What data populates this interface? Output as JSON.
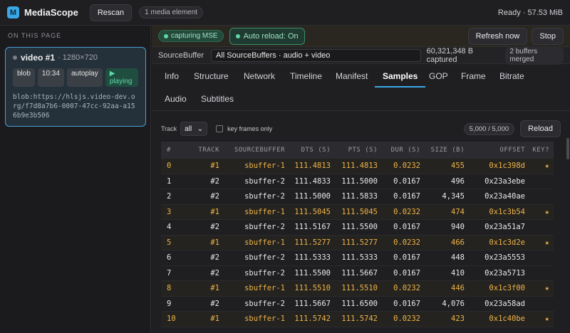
{
  "app": {
    "logo_letter": "M",
    "name": "MediaScope",
    "rescan_label": "Rescan",
    "media_count": "1 media element",
    "status": "Ready · 57.53 MiB"
  },
  "sidebar": {
    "heading": "ON THIS PAGE",
    "card": {
      "title": "video #1",
      "dims": "· 1280×720",
      "chips": [
        "blob",
        "10:34",
        "autoplay",
        "playing"
      ],
      "url": "blob:https://hlsjs.video-dev.org/f7d8a7b6-0007-47cc-92aa-a156b9e3b506"
    }
  },
  "status_bar": {
    "capture_badge": "capturing MSE",
    "auto_reload": "Auto reload: On",
    "refresh": "Refresh now",
    "stop": "Stop"
  },
  "sourcebuffer": {
    "label": "SourceBuffer",
    "selected": "All SourceBuffers · audio + video",
    "captured": "60,321,348 B captured",
    "merged": "2 buffers merged"
  },
  "tabs": [
    "Info",
    "Structure",
    "Network",
    "Timeline",
    "Manifest",
    "Samples",
    "GOP",
    "Frame",
    "Bitrate",
    "Audio",
    "Subtitles"
  ],
  "active_tab": "Samples",
  "toolbar": {
    "track_label": "Track",
    "track_value": "all",
    "keyframes_label": "key frames only",
    "count": "5,000 / 5,000",
    "reload": "Reload"
  },
  "table": {
    "columns": [
      "#",
      "TRACK",
      "SOURCEBUFFER",
      "DTS (S)",
      "PTS (S)",
      "DUR (S)",
      "SIZE (B)",
      "OFFSET",
      "KEY?"
    ],
    "rows": [
      {
        "i": "0",
        "track": "#1",
        "sb": "sbuffer-1",
        "dts": "111.4813",
        "pts": "111.4813",
        "dur": "0.0232",
        "size": "455",
        "offset": "0x1c398d",
        "key": "★"
      },
      {
        "i": "1",
        "track": "#2",
        "sb": "sbuffer-2",
        "dts": "111.4833",
        "pts": "111.5000",
        "dur": "0.0167",
        "size": "496",
        "offset": "0x23a3ebe",
        "key": ""
      },
      {
        "i": "2",
        "track": "#2",
        "sb": "sbuffer-2",
        "dts": "111.5000",
        "pts": "111.5833",
        "dur": "0.0167",
        "size": "4,345",
        "offset": "0x23a40ae",
        "key": ""
      },
      {
        "i": "3",
        "track": "#1",
        "sb": "sbuffer-1",
        "dts": "111.5045",
        "pts": "111.5045",
        "dur": "0.0232",
        "size": "474",
        "offset": "0x1c3b54",
        "key": "★"
      },
      {
        "i": "4",
        "track": "#2",
        "sb": "sbuffer-2",
        "dts": "111.5167",
        "pts": "111.5500",
        "dur": "0.0167",
        "size": "940",
        "offset": "0x23a51a7",
        "key": ""
      },
      {
        "i": "5",
        "track": "#1",
        "sb": "sbuffer-1",
        "dts": "111.5277",
        "pts": "111.5277",
        "dur": "0.0232",
        "size": "466",
        "offset": "0x1c3d2e",
        "key": "★"
      },
      {
        "i": "6",
        "track": "#2",
        "sb": "sbuffer-2",
        "dts": "111.5333",
        "pts": "111.5333",
        "dur": "0.0167",
        "size": "448",
        "offset": "0x23a5553",
        "key": ""
      },
      {
        "i": "7",
        "track": "#2",
        "sb": "sbuffer-2",
        "dts": "111.5500",
        "pts": "111.5667",
        "dur": "0.0167",
        "size": "410",
        "offset": "0x23a5713",
        "key": ""
      },
      {
        "i": "8",
        "track": "#1",
        "sb": "sbuffer-1",
        "dts": "111.5510",
        "pts": "111.5510",
        "dur": "0.0232",
        "size": "446",
        "offset": "0x1c3f00",
        "key": "★"
      },
      {
        "i": "9",
        "track": "#2",
        "sb": "sbuffer-2",
        "dts": "111.5667",
        "pts": "111.6500",
        "dur": "0.0167",
        "size": "4,076",
        "offset": "0x23a58ad",
        "key": ""
      },
      {
        "i": "10",
        "track": "#1",
        "sb": "sbuffer-1",
        "dts": "111.5742",
        "pts": "111.5742",
        "dur": "0.0232",
        "size": "423",
        "offset": "0x1c40be",
        "key": "★"
      }
    ]
  }
}
